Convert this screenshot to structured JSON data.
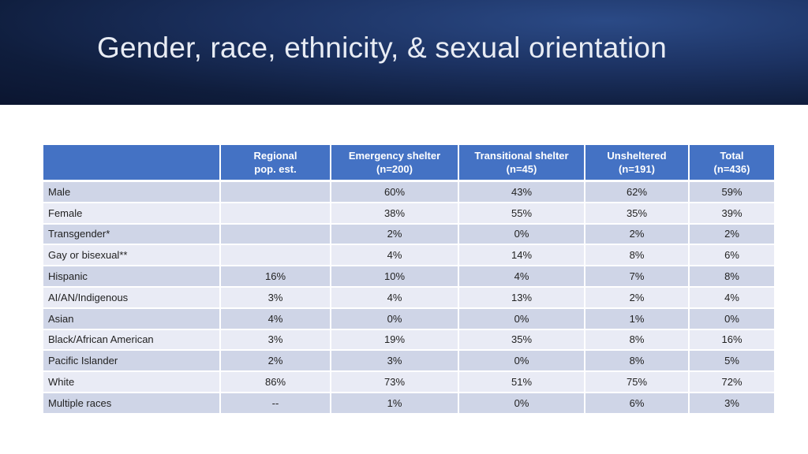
{
  "slide": {
    "title": "Gender, race, ethnicity, & sexual orientation",
    "colors": {
      "header": "#4472c4",
      "row_dark": "#cfd5e7",
      "row_light": "#e9ebf5",
      "banner": "#1c3262"
    }
  },
  "table": {
    "headers": [
      {
        "line1": "",
        "line2": ""
      },
      {
        "line1": "Regional",
        "line2": "pop. est."
      },
      {
        "line1": "Emergency shelter",
        "line2": "(n=200)"
      },
      {
        "line1": "Transitional shelter",
        "line2": "(n=45)"
      },
      {
        "line1": "Unsheltered",
        "line2": "(n=191)"
      },
      {
        "line1": "Total",
        "line2": "(n=436)"
      }
    ],
    "rows": [
      [
        "Male",
        "",
        "60%",
        "43%",
        "62%",
        "59%"
      ],
      [
        "Female",
        "",
        "38%",
        "55%",
        "35%",
        "39%"
      ],
      [
        "Transgender*",
        "",
        "2%",
        "0%",
        "2%",
        "2%"
      ],
      [
        "Gay or bisexual**",
        "",
        "4%",
        "14%",
        "8%",
        "6%"
      ],
      [
        "Hispanic",
        "16%",
        "10%",
        "4%",
        "7%",
        "8%"
      ],
      [
        "AI/AN/Indigenous",
        "3%",
        "4%",
        "13%",
        "2%",
        "4%"
      ],
      [
        "Asian",
        "4%",
        "0%",
        "0%",
        "1%",
        "0%"
      ],
      [
        "Black/African American",
        "3%",
        "19%",
        "35%",
        "8%",
        "16%"
      ],
      [
        "Pacific Islander",
        "2%",
        "3%",
        "0%",
        "8%",
        "5%"
      ],
      [
        "White",
        "86%",
        "73%",
        "51%",
        "75%",
        "72%"
      ],
      [
        "Multiple races",
        "--",
        "1%",
        "0%",
        "6%",
        "3%"
      ]
    ]
  }
}
